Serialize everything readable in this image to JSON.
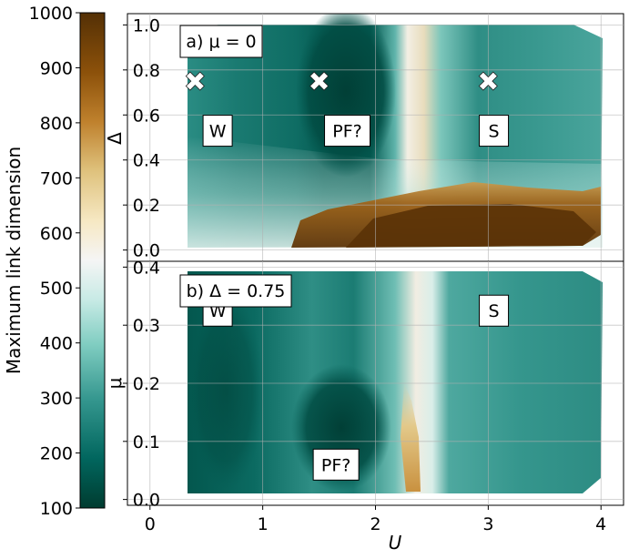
{
  "colorbar": {
    "label": "Maximum link dimension",
    "range": [
      100,
      1000
    ],
    "ticks": [
      100,
      200,
      300,
      400,
      500,
      600,
      700,
      800,
      900,
      1000
    ],
    "tick_labels": [
      "100",
      "200",
      "300",
      "400",
      "500",
      "600",
      "700",
      "800",
      "900",
      "1000"
    ],
    "colormap": [
      "#003c30",
      "#01665e",
      "#35978f",
      "#80cdc1",
      "#c7eae5",
      "#f5f5f5",
      "#f6e8c3",
      "#dfc27d",
      "#bf812d",
      "#8c510a",
      "#543005"
    ]
  },
  "chart_data": [
    {
      "type": "heatmap",
      "panel_label": "a) μ = 0",
      "xlabel": "U",
      "ylabel": "Δ",
      "xlim": [
        -0.2,
        4.2
      ],
      "ylim": [
        -0.05,
        1.05
      ],
      "xticks": [
        0,
        1,
        2,
        3,
        4
      ],
      "yticks": [
        0.0,
        0.2,
        0.4,
        0.6,
        0.8,
        1.0
      ],
      "ytick_labels": [
        "0.0",
        "0.2",
        "0.4",
        "0.6",
        "0.8",
        "1.0"
      ],
      "markers": [
        {
          "symbol": "✖",
          "U": 0.4,
          "Delta": 0.75
        },
        {
          "symbol": "✖",
          "U": 1.5,
          "Delta": 0.75
        },
        {
          "symbol": "✖",
          "U": 3.0,
          "Delta": 0.75
        }
      ],
      "region_labels": [
        {
          "text": "W",
          "U": 0.6,
          "Delta": 0.53
        },
        {
          "text": "PF?",
          "U": 1.75,
          "Delta": 0.53
        },
        {
          "text": "S",
          "U": 3.05,
          "Delta": 0.53
        }
      ]
    },
    {
      "type": "heatmap",
      "panel_label": "b) Δ = 0.75",
      "xlabel": "U",
      "ylabel": "μ",
      "xlim": [
        -0.2,
        4.2
      ],
      "ylim": [
        -0.01,
        0.41
      ],
      "xticks": [
        0,
        1,
        2,
        3,
        4
      ],
      "xtick_labels": [
        "0",
        "1",
        "2",
        "3",
        "4"
      ],
      "yticks": [
        0.0,
        0.1,
        0.2,
        0.3,
        0.4
      ],
      "ytick_labels": [
        "0.0",
        "0.1",
        "0.2",
        "0.3",
        "0.4"
      ],
      "region_labels": [
        {
          "text": "W",
          "U": 0.6,
          "mu": 0.325
        },
        {
          "text": "S",
          "U": 3.05,
          "mu": 0.325
        },
        {
          "text": "PF?",
          "U": 1.65,
          "mu": 0.06
        }
      ]
    }
  ]
}
